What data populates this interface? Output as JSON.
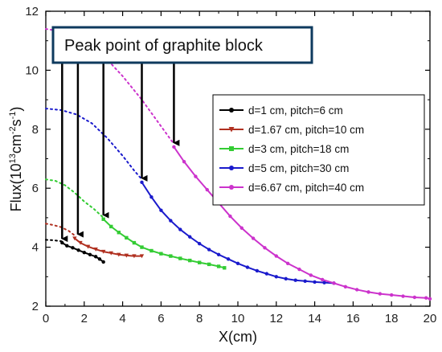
{
  "chart_data": {
    "type": "line",
    "xlabel": "X(cm)",
    "ylabel_main": "Flux(10",
    "ylabel_sup1": "13",
    "ylabel_mid": "cm",
    "ylabel_sup2": "-2",
    "ylabel_end": "s",
    "ylabel_sup3": "-1",
    "ylabel_close": ")",
    "xlim": [
      0,
      20
    ],
    "ylim": [
      2,
      12
    ],
    "x_ticks": [
      0,
      2,
      4,
      6,
      8,
      10,
      12,
      14,
      16,
      18,
      20
    ],
    "y_ticks": [
      2,
      4,
      6,
      8,
      10,
      12
    ],
    "grid": false,
    "legend_position": "right",
    "annotation": "Peak point of graphite block",
    "series": [
      {
        "name": "d=1 cm, pitch=6 cm",
        "color": "#000000",
        "marker": "circle",
        "dotted": {
          "x": [
            0,
            0.3,
            0.6,
            0.85
          ],
          "y": [
            4.25,
            4.24,
            4.22,
            4.2
          ]
        },
        "x": [
          0.85,
          1.1,
          1.4,
          1.7,
          2.0,
          2.3,
          2.6,
          2.8,
          3.0
        ],
        "y": [
          4.15,
          4.05,
          3.98,
          3.9,
          3.82,
          3.75,
          3.68,
          3.6,
          3.5
        ]
      },
      {
        "name": "d=1.67 cm, pitch=10 cm",
        "color": "#b03020",
        "marker": "triangle-down",
        "dotted": {
          "x": [
            0,
            0.4,
            0.8,
            1.2,
            1.5
          ],
          "y": [
            4.8,
            4.75,
            4.68,
            4.55,
            4.4
          ]
        },
        "x": [
          1.5,
          1.8,
          2.2,
          2.6,
          3.0,
          3.4,
          3.8,
          4.2,
          4.6,
          5.0
        ],
        "y": [
          4.3,
          4.15,
          4.02,
          3.93,
          3.85,
          3.8,
          3.75,
          3.72,
          3.7,
          3.7
        ]
      },
      {
        "name": "d=3 cm, pitch=18 cm",
        "color": "#33cc33",
        "marker": "square",
        "dotted": {
          "x": [
            0,
            0.5,
            1.0,
            1.5,
            2.0,
            2.5,
            3.0
          ],
          "y": [
            6.3,
            6.25,
            6.1,
            5.85,
            5.55,
            5.3,
            5.0
          ]
        },
        "x": [
          3.0,
          3.4,
          3.8,
          4.2,
          4.6,
          5.0,
          5.5,
          6.0,
          6.5,
          7.0,
          7.5,
          8.0,
          8.5,
          9.0,
          9.3
        ],
        "y": [
          4.95,
          4.7,
          4.5,
          4.32,
          4.15,
          4.0,
          3.88,
          3.78,
          3.7,
          3.62,
          3.55,
          3.48,
          3.42,
          3.35,
          3.3
        ]
      },
      {
        "name": "d=5 cm, pitch=30 cm",
        "color": "#1a1acc",
        "marker": "circle",
        "dotted": {
          "x": [
            0,
            0.8,
            1.6,
            2.4,
            3.2,
            4.0,
            4.6,
            5.0
          ],
          "y": [
            8.7,
            8.65,
            8.5,
            8.2,
            7.7,
            7.1,
            6.6,
            6.3
          ]
        },
        "x": [
          5.0,
          5.5,
          6.0,
          6.5,
          7.0,
          7.5,
          8.0,
          8.5,
          9.0,
          9.5,
          10.0,
          10.5,
          11.0,
          11.5,
          12.0,
          12.5,
          13.0,
          13.5,
          14.0,
          14.5,
          15.0
        ],
        "y": [
          6.2,
          5.7,
          5.25,
          4.9,
          4.6,
          4.35,
          4.12,
          3.92,
          3.75,
          3.6,
          3.45,
          3.32,
          3.2,
          3.1,
          3.0,
          2.93,
          2.88,
          2.85,
          2.82,
          2.8,
          2.78
        ]
      },
      {
        "name": "d=6.67 cm, pitch=40 cm",
        "color": "#cc33cc",
        "marker": "circle",
        "dotted": {
          "x": [
            0,
            1.0,
            2.0,
            3.0,
            4.0,
            5.0,
            6.0,
            6.67
          ],
          "y": [
            11.4,
            11.3,
            11.0,
            10.5,
            9.8,
            9.0,
            8.1,
            7.5
          ]
        },
        "x": [
          6.67,
          7.2,
          7.8,
          8.4,
          9.0,
          9.6,
          10.2,
          10.8,
          11.4,
          12.0,
          12.6,
          13.2,
          13.8,
          14.4,
          15.0,
          15.6,
          16.2,
          16.8,
          17.4,
          18.0,
          18.6,
          19.2,
          19.8,
          20.0
        ],
        "y": [
          7.4,
          6.9,
          6.4,
          5.95,
          5.5,
          5.05,
          4.65,
          4.3,
          3.98,
          3.7,
          3.45,
          3.25,
          3.05,
          2.9,
          2.78,
          2.66,
          2.56,
          2.48,
          2.42,
          2.38,
          2.34,
          2.3,
          2.28,
          2.25
        ]
      }
    ],
    "arrows": [
      {
        "x": 0.85,
        "y_tip": 4.15
      },
      {
        "x": 1.67,
        "y_tip": 4.3
      },
      {
        "x": 3.0,
        "y_tip": 4.95
      },
      {
        "x": 5.0,
        "y_tip": 6.2
      },
      {
        "x": 6.67,
        "y_tip": 7.4
      }
    ]
  }
}
